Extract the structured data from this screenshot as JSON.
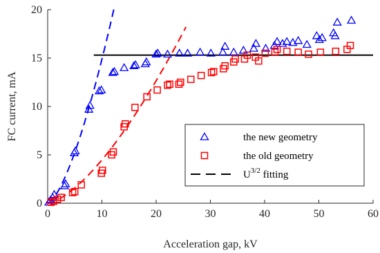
{
  "chart_data": {
    "type": "scatter",
    "xlabel": "Acceleration gap, kV",
    "ylabel": "FC current, mA",
    "xlim": [
      0,
      60
    ],
    "ylim": [
      0,
      20
    ],
    "xticks": [
      0,
      10,
      20,
      30,
      40,
      50,
      60
    ],
    "yticks": [
      0,
      5,
      10,
      15,
      20
    ],
    "grid": false,
    "legend_position": "lower-right",
    "series": [
      {
        "name": "the new geometry",
        "marker": "triangle",
        "color": "#0000FF",
        "points": [
          [
            0.2,
            0.1
          ],
          [
            0.5,
            0.3
          ],
          [
            0.9,
            0.6
          ],
          [
            1.2,
            0.9
          ],
          [
            3.1,
            1.8
          ],
          [
            3.3,
            2.0
          ],
          [
            4.9,
            5.2
          ],
          [
            5.1,
            5.4
          ],
          [
            7.6,
            9.7
          ],
          [
            7.8,
            10.1
          ],
          [
            9.5,
            11.6
          ],
          [
            9.9,
            11.7
          ],
          [
            12.0,
            13.5
          ],
          [
            12.3,
            13.6
          ],
          [
            14.1,
            14.0
          ],
          [
            15.9,
            14.2
          ],
          [
            16.2,
            14.3
          ],
          [
            18.0,
            14.4
          ],
          [
            18.2,
            14.6
          ],
          [
            20.0,
            15.4
          ],
          [
            20.3,
            15.5
          ],
          [
            22.1,
            15.4
          ],
          [
            24.3,
            15.5
          ],
          [
            25.8,
            15.5
          ],
          [
            28.1,
            15.6
          ],
          [
            30.1,
            15.5
          ],
          [
            32.3,
            15.6
          ],
          [
            32.7,
            16.2
          ],
          [
            34.3,
            15.6
          ],
          [
            36.1,
            15.8
          ],
          [
            38.0,
            16.0
          ],
          [
            38.4,
            16.5
          ],
          [
            40.2,
            16.0
          ],
          [
            41.8,
            16.3
          ],
          [
            42.3,
            16.7
          ],
          [
            43.3,
            16.5
          ],
          [
            44.1,
            16.7
          ],
          [
            45.2,
            16.6
          ],
          [
            46.2,
            16.8
          ],
          [
            47.8,
            16.4
          ],
          [
            49.6,
            17.3
          ],
          [
            50.1,
            16.9
          ],
          [
            50.6,
            17.1
          ],
          [
            52.7,
            17.6
          ],
          [
            53.0,
            17.3
          ],
          [
            53.4,
            18.7
          ],
          [
            56.0,
            18.9
          ]
        ]
      },
      {
        "name": "the old geometry",
        "marker": "square",
        "color": "#FF0000",
        "points": [
          [
            0.6,
            0.1
          ],
          [
            1.1,
            0.2
          ],
          [
            1.8,
            0.4
          ],
          [
            2.5,
            0.6
          ],
          [
            4.6,
            1.1
          ],
          [
            5.0,
            1.2
          ],
          [
            6.2,
            1.9
          ],
          [
            9.9,
            3.1
          ],
          [
            10.1,
            3.4
          ],
          [
            11.8,
            5.0
          ],
          [
            12.1,
            5.3
          ],
          [
            14.1,
            7.9
          ],
          [
            14.3,
            8.2
          ],
          [
            16.1,
            9.9
          ],
          [
            18.3,
            11.0
          ],
          [
            20.2,
            11.7
          ],
          [
            22.1,
            12.2
          ],
          [
            22.5,
            12.3
          ],
          [
            24.2,
            12.3
          ],
          [
            24.5,
            12.5
          ],
          [
            26.4,
            12.8
          ],
          [
            28.3,
            13.2
          ],
          [
            30.2,
            13.5
          ],
          [
            30.6,
            13.6
          ],
          [
            32.4,
            13.9
          ],
          [
            32.7,
            14.2
          ],
          [
            34.3,
            14.6
          ],
          [
            34.6,
            14.9
          ],
          [
            36.3,
            14.9
          ],
          [
            36.8,
            15.3
          ],
          [
            38.3,
            15.1
          ],
          [
            38.9,
            14.7
          ],
          [
            40.1,
            15.5
          ],
          [
            41.9,
            15.6
          ],
          [
            42.3,
            15.9
          ],
          [
            44.1,
            15.7
          ],
          [
            46.2,
            15.6
          ],
          [
            48.1,
            15.4
          ],
          [
            50.3,
            15.6
          ],
          [
            53.1,
            15.7
          ],
          [
            55.2,
            15.9
          ],
          [
            55.8,
            16.3
          ]
        ]
      }
    ],
    "fits": [
      {
        "name": "U 3/2 fitting",
        "style": "dashed",
        "color": "#0000FF",
        "x_range": [
          0,
          12.2
        ],
        "k": 0.4704
      },
      {
        "name": "U 3/2 fitting",
        "style": "dashed",
        "color": "#FF0000",
        "x_range": [
          0,
          25.5
        ],
        "k": 0.1415
      }
    ],
    "reference_line": {
      "y": 15.3,
      "x_range": [
        8.5,
        60
      ],
      "color": "#000000"
    },
    "legend": [
      {
        "label": "the new geometry",
        "symbol": "triangle",
        "color": "#0000FF"
      },
      {
        "label": "the old geometry",
        "symbol": "square",
        "color": "#FF0000"
      },
      {
        "label_base": "U",
        "label_sup": "3/2",
        "label_rest": " fitting",
        "symbol": "dashed-line",
        "color": "#000000"
      }
    ]
  }
}
